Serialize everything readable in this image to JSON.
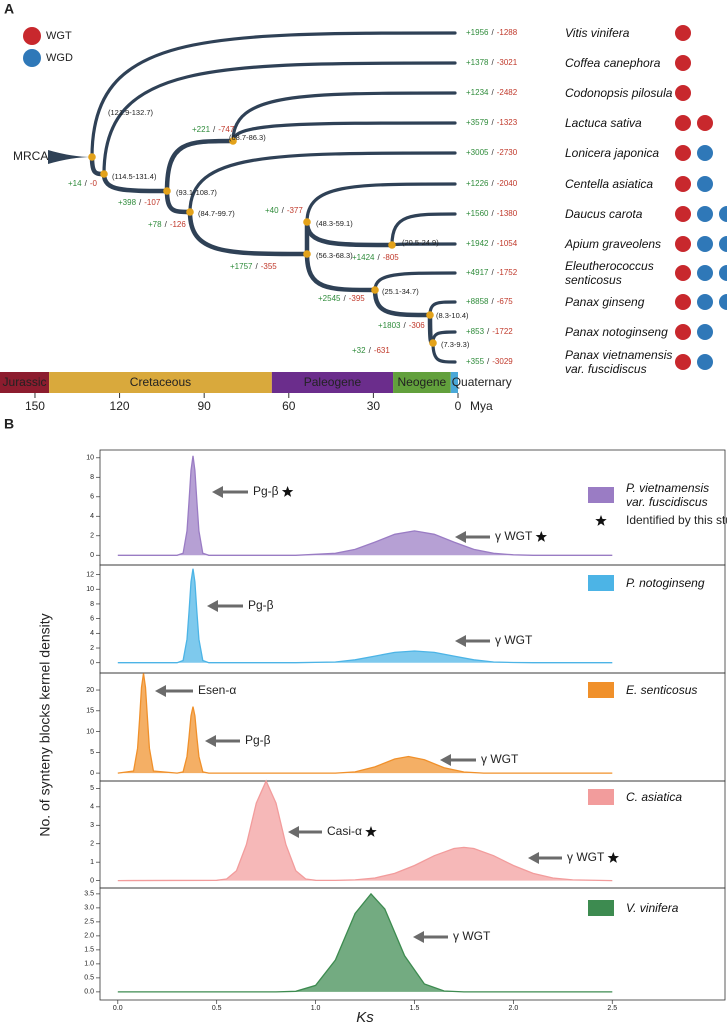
{
  "panel_a": {
    "label": "A",
    "root_label": "MRCA",
    "separator": "/",
    "legend": [
      {
        "name": "WGT",
        "color": "#c8282d"
      },
      {
        "name": "WGD",
        "color": "#2f78b8"
      }
    ],
    "nodes": [
      {
        "age": "(121.9-132.7)"
      },
      {
        "age": "(114.5-131.4)",
        "gain": "+14",
        "loss": "-0"
      },
      {
        "age": "(93.1-108.7)",
        "gain": "+398",
        "loss": "-107"
      },
      {
        "age": "(68.7-86.3)",
        "gain": "+221",
        "loss": "-747"
      },
      {
        "age": "(84.7-99.7)",
        "gain": "+78",
        "loss": "-126"
      },
      {
        "age": "(56.3-68.3)",
        "gain": "+1757",
        "loss": "-355"
      },
      {
        "age": "(48.3-59.1)",
        "gain": "+40",
        "loss": "-377"
      },
      {
        "age": "(20.5-24.9)",
        "gain": "+1424",
        "loss": "-805"
      },
      {
        "age": "(25.1-34.7)",
        "gain": "+2545",
        "loss": "-395"
      },
      {
        "age": "(8.3-10.4)",
        "gain": "+1803",
        "loss": "-306"
      },
      {
        "age": "(7.3-9.3)",
        "gain": "+32",
        "loss": "-631"
      }
    ],
    "taxa": [
      {
        "name": "Vitis vinifera",
        "gain": "+1956",
        "loss": "-1288",
        "events": [
          "WGT"
        ]
      },
      {
        "name": "Coffea canephora",
        "gain": "+1378",
        "loss": "-3021",
        "events": [
          "WGT"
        ]
      },
      {
        "name": "Codonopsis pilosula",
        "gain": "+1234",
        "loss": "-2482",
        "events": [
          "WGT"
        ]
      },
      {
        "name": "Lactuca sativa",
        "gain": "+3579",
        "loss": "-1323",
        "events": [
          "WGT",
          "WGT"
        ]
      },
      {
        "name": "Lonicera japonica",
        "gain": "+3005",
        "loss": "-2730",
        "events": [
          "WGT",
          "WGD"
        ]
      },
      {
        "name": "Centella asiatica",
        "gain": "+1226",
        "loss": "-2040",
        "events": [
          "WGT",
          "WGD"
        ]
      },
      {
        "name": "Daucus carota",
        "gain": "+1560",
        "loss": "-1380",
        "events": [
          "WGT",
          "WGD",
          "WGD"
        ]
      },
      {
        "name": "Apium graveolens",
        "gain": "+1942",
        "loss": "-1054",
        "events": [
          "WGT",
          "WGD",
          "WGD"
        ]
      },
      {
        "name": "Eleutherococcus senticosus",
        "gain": "+4917",
        "loss": "-1752",
        "events": [
          "WGT",
          "WGD",
          "WGD"
        ]
      },
      {
        "name": "Panax ginseng",
        "gain": "+8858",
        "loss": "-675",
        "events": [
          "WGT",
          "WGD",
          "WGD"
        ]
      },
      {
        "name": "Panax notoginseng",
        "gain": "+853",
        "loss": "-1722",
        "events": [
          "WGT",
          "WGD"
        ]
      },
      {
        "name": "Panax vietnamensis var. fuscidiscus",
        "gain": "+355",
        "loss": "-3029",
        "events": [
          "WGT",
          "WGD"
        ]
      }
    ],
    "timescale": {
      "xlim": [
        162.4,
        0
      ],
      "ticks": [
        150,
        120,
        90,
        60,
        30,
        0
      ],
      "unit": "Mya",
      "periods": [
        {
          "name": "Jurassic",
          "start": 201.3,
          "end": 145,
          "color": "#8c1c2e"
        },
        {
          "name": "Cretaceous",
          "start": 145,
          "end": 66,
          "color": "#d9a93c"
        },
        {
          "name": "Paleogene",
          "start": 66,
          "end": 23.03,
          "color": "#6b2d8c"
        },
        {
          "name": "Neogene",
          "start": 23.03,
          "end": 2.58,
          "color": "#62a03c"
        },
        {
          "name": "Quaternary",
          "start": 2.58,
          "end": 0,
          "color": "#4aa8d8"
        }
      ]
    }
  },
  "panel_b": {
    "label": "B",
    "y_label": "No. of synteny blocks kernel density",
    "x_label": "Ks",
    "star_note": "Identified by this study"
  },
  "chart_data": [
    {
      "type": "area",
      "xlim": [
        -0.09,
        3.07
      ],
      "ylim": [
        -1,
        10.8
      ],
      "yticks": [
        0,
        2,
        4,
        6,
        8,
        10
      ],
      "x": [
        0,
        0.3,
        0.33,
        0.35,
        0.36,
        0.37,
        0.38,
        0.39,
        0.4,
        0.41,
        0.43,
        0.46,
        0.9,
        1.1,
        1.2,
        1.3,
        1.4,
        1.5,
        1.6,
        1.7,
        1.8,
        1.9,
        2.0,
        2.1,
        2.5
      ],
      "series": [
        {
          "name": "P. vietnamensis var. fuscidiscus",
          "color": "#9a7cc4",
          "values": [
            0,
            0,
            0.2,
            2.5,
            5.5,
            8.7,
            10.2,
            8.7,
            5.5,
            2.5,
            0.2,
            0,
            0,
            0.2,
            0.6,
            1.35,
            2.15,
            2.5,
            2.15,
            1.35,
            0.6,
            0.2,
            0.05,
            0,
            0
          ]
        }
      ],
      "annotations": [
        {
          "text": "Pg-β",
          "starred": true
        },
        {
          "text": "γ WGT",
          "starred": true
        }
      ]
    },
    {
      "type": "area",
      "xlim": [
        -0.09,
        3.07
      ],
      "ylim": [
        -1.4,
        13.3
      ],
      "yticks": [
        0,
        2,
        4,
        6,
        8,
        10,
        12
      ],
      "x": [
        0,
        0.3,
        0.33,
        0.35,
        0.36,
        0.37,
        0.38,
        0.39,
        0.4,
        0.41,
        0.43,
        0.46,
        0.9,
        1.1,
        1.2,
        1.3,
        1.4,
        1.5,
        1.6,
        1.7,
        1.8,
        1.9,
        2.0,
        2.1,
        2.5
      ],
      "series": [
        {
          "name": "P. notoginseng",
          "color": "#4cb4e6",
          "values": [
            0,
            0,
            0.3,
            3.2,
            6.9,
            11,
            12.8,
            11,
            6.9,
            3.2,
            0.3,
            0,
            0,
            0.1,
            0.4,
            0.9,
            1.4,
            1.6,
            1.4,
            0.9,
            0.4,
            0.1,
            0.03,
            0,
            0
          ]
        }
      ],
      "annotations": [
        {
          "text": "Pg-β",
          "starred": false
        },
        {
          "text": "γ WGT",
          "starred": false
        }
      ]
    },
    {
      "type": "area",
      "xlim": [
        -0.09,
        3.07
      ],
      "ylim": [
        -1.9,
        24.1
      ],
      "yticks": [
        0,
        5,
        10,
        15,
        20
      ],
      "x": [
        0,
        0.08,
        0.1,
        0.11,
        0.12,
        0.13,
        0.14,
        0.15,
        0.16,
        0.18,
        0.3,
        0.33,
        0.35,
        0.36,
        0.37,
        0.38,
        0.39,
        0.4,
        0.41,
        0.43,
        0.46,
        1.1,
        1.2,
        1.3,
        1.4,
        1.47,
        1.55,
        1.65,
        1.75,
        1.85,
        2.5
      ],
      "series": [
        {
          "name": "E. senticosus",
          "color": "#f0902a",
          "values": [
            0,
            0.5,
            6,
            13,
            20.6,
            24,
            20.6,
            13,
            6,
            0.5,
            0,
            0.3,
            4,
            8.6,
            13.8,
            16,
            13.8,
            8.6,
            4,
            0.3,
            0,
            0,
            0.3,
            1.5,
            3.4,
            4,
            3.2,
            1.3,
            0.26,
            0,
            0
          ]
        }
      ],
      "annotations": [
        {
          "text": "Esen-α",
          "starred": false
        },
        {
          "text": "Pg-β",
          "starred": false
        },
        {
          "text": "γ WGT",
          "starred": false
        }
      ]
    },
    {
      "type": "area",
      "xlim": [
        -0.09,
        3.07
      ],
      "ylim": [
        -0.4,
        5.4
      ],
      "yticks": [
        0,
        1,
        2,
        3,
        4,
        5
      ],
      "x": [
        0,
        0.5,
        0.55,
        0.6,
        0.65,
        0.7,
        0.75,
        0.8,
        0.85,
        0.9,
        0.95,
        1.0,
        1.1,
        1.2,
        1.3,
        1.4,
        1.5,
        1.6,
        1.7,
        1.75,
        1.8,
        1.9,
        2.0,
        2.1,
        2.2,
        2.3,
        2.5
      ],
      "series": [
        {
          "name": "C. asiatica",
          "color": "#f29c9c",
          "values": [
            0,
            0.02,
            0.09,
            0.54,
            1.95,
            4.2,
            5.4,
            4.2,
            1.95,
            0.54,
            0.09,
            0.02,
            0.01,
            0.04,
            0.14,
            0.39,
            0.82,
            1.35,
            1.74,
            1.8,
            1.74,
            1.35,
            0.82,
            0.39,
            0.14,
            0.04,
            0
          ]
        }
      ],
      "annotations": [
        {
          "text": "Casi-α",
          "starred": true
        },
        {
          "text": "γ WGT",
          "starred": true
        }
      ]
    },
    {
      "type": "area",
      "xlim": [
        -0.09,
        3.07
      ],
      "ylim": [
        -0.29,
        3.71
      ],
      "yticks": [
        {
          "value": 0,
          "label": "0.0"
        },
        0.5,
        {
          "value": 1,
          "label": "1.0"
        },
        1.5,
        {
          "value": 2,
          "label": "2.0"
        },
        2.5,
        {
          "value": 3,
          "label": "3.0"
        },
        3.5
      ],
      "xticks": [
        {
          "value": 0,
          "label": "0.0"
        },
        0.5,
        {
          "value": 1,
          "label": "1.0"
        },
        1.5,
        {
          "value": 2,
          "label": "2.0"
        },
        2.5
      ],
      "x": [
        0,
        0.8,
        0.9,
        1.0,
        1.1,
        1.2,
        1.28,
        1.35,
        1.45,
        1.55,
        1.65,
        1.75,
        2.5
      ],
      "series": [
        {
          "name": "V. vinifera",
          "color": "#3d8b50",
          "values": [
            0,
            0,
            0.02,
            0.23,
            1.14,
            2.8,
            3.5,
            2.96,
            1.29,
            0.28,
            0.03,
            0,
            0
          ]
        }
      ],
      "annotations": [
        {
          "text": "γ WGT",
          "starred": false
        }
      ]
    }
  ]
}
